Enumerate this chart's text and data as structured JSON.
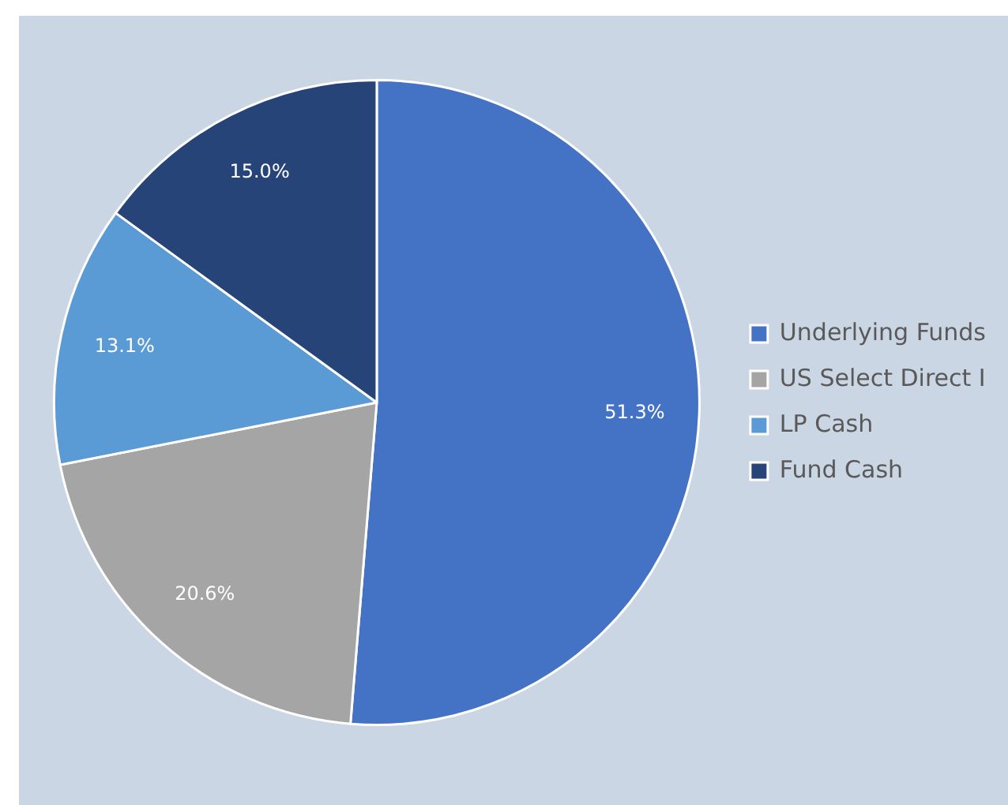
{
  "chart_data": {
    "type": "pie",
    "categories": [
      "Underlying Funds",
      "US Select Direct I",
      "LP Cash",
      "Fund Cash"
    ],
    "values": [
      51.3,
      20.6,
      13.1,
      15.0
    ],
    "colors": [
      "#4472c4",
      "#a5a5a5",
      "#5b9bd5",
      "#264478"
    ],
    "value_labels": [
      "51.3%",
      "20.6%",
      "13.1%",
      "15.0%"
    ],
    "legend": "right"
  }
}
